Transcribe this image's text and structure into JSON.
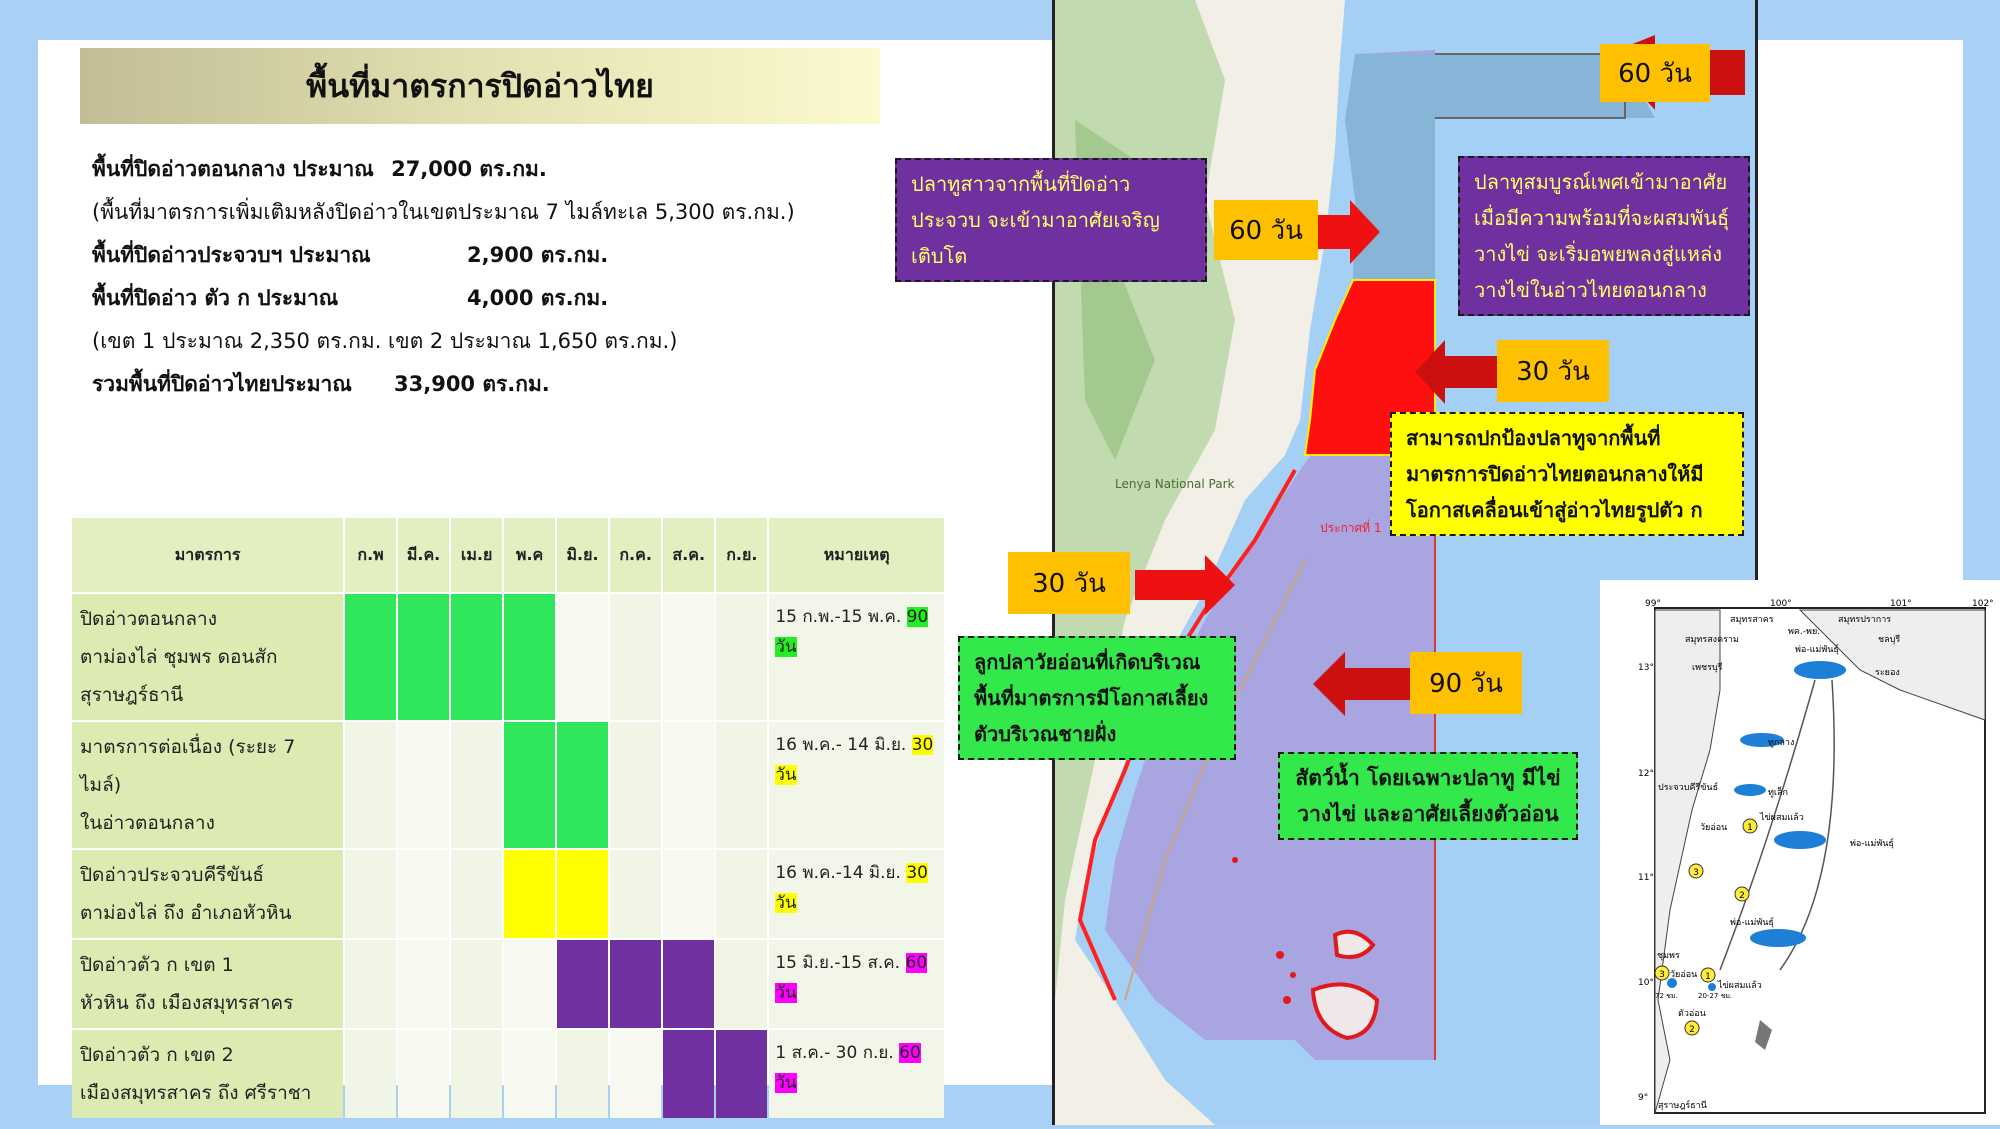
{
  "title": "พื้นที่มาตรการปิดอ่าวไทย",
  "info": {
    "central_label": "พื้นที่ปิดอ่าวตอนกลาง ประมาณ",
    "central_value": "27,000 ตร.กม.",
    "central_note": "(พื้นที่มาตรการเพิ่มเติมหลังปิดอ่าวในเขตประมาณ 7 ไมล์ทะเล 5,300 ตร.กม.)",
    "prachuap_label": "พื้นที่ปิดอ่าวประจวบฯ ประมาณ",
    "prachuap_value": "2,900 ตร.กม.",
    "kor_label": "พื้นที่ปิดอ่าว ตัว ก ประมาณ",
    "kor_value": "4,000 ตร.กม.",
    "kor_note": "(เขต 1 ประมาณ 2,350 ตร.กม. เขต 2 ประมาณ 1,650 ตร.กม.)",
    "total_label": "รวมพื้นที่ปิดอ่าวไทยประมาณ",
    "total_value": "33,900 ตร.กม."
  },
  "table": {
    "headers": [
      "มาตรการ",
      "ก.พ",
      "มี.ค.",
      "เม.ย",
      "พ.ค",
      "มิ.ย.",
      "ก.ค.",
      "ส.ค.",
      "ก.ย.",
      "หมายเหตุ"
    ],
    "rows": [
      {
        "measure_1": "ปิดอ่าวตอนกลาง",
        "measure_2": "ตาม่องไล่ ชุมพร ดอนสัก",
        "measure_3": "สุราษฎร์ธานี",
        "note": "15 ก.พ.-15 พ.ค.",
        "days": "90",
        "days_unit": "วัน",
        "color": "#2ee65a"
      },
      {
        "measure_1": "มาตรการต่อเนื่อง (ระยะ 7 ไมล์)",
        "measure_2": "ในอ่าวตอนกลาง",
        "note": "16 พ.ค.- 14 มิ.ย.",
        "days": "30",
        "days_unit": "วัน",
        "color": "#2ee65a"
      },
      {
        "measure_1": "ปิดอ่าวประจวบคีรีขันธ์",
        "measure_2": "ตาม่องไล่ ถึง อำเภอหัวหิน",
        "note": "16 พ.ค.-14 มิ.ย.",
        "days": "30",
        "days_unit": "วัน",
        "color": "#ffff00"
      },
      {
        "measure_1": "ปิดอ่าวตัว ก เขต 1",
        "measure_2": "หัวหิน ถึง เมืองสมุทรสาคร",
        "note": "15 มิ.ย.-15 ส.ค.",
        "days": "60",
        "days_unit": "วัน",
        "color": "#7030a0"
      },
      {
        "measure_1": "ปิดอ่าวตัว ก เขต 2",
        "measure_2": "เมืองสมุทรสาคร ถึง ศรีราชา",
        "note": "1 ส.ค.- 30 ก.ย.",
        "days": "60 วัน",
        "color": "#7030a0"
      }
    ]
  },
  "map": {
    "days_60a": "60 วัน",
    "days_60b": "60 วัน",
    "days_30a": "30 วัน",
    "days_30b": "30 วัน",
    "days_90": "90 วัน",
    "callout_juvenile": "ปลาทูสาวจากพื้นที่ปิดอ่าวประจวบ จะเข้ามาอาศัยเจริญเติบโต",
    "callout_mature": "ปลาทูสมบูรณ์เพศเข้ามาอาศัยเมื่อมีความพร้อมที่จะผสมพันธุ์วางไข่ จะเริ่มอพยพลงสู่แหล่งวางไข่ในอ่าวไทยตอนกลาง",
    "callout_protect": "สามารถปกป้องปลาทูจากพื้นที่มาตรการปิดอ่าวไทยตอนกลางให้มีโอกาสเคลื่อนเข้าสู่อ่าวไทยรูปตัว ก",
    "callout_larvae": "ลูกปลาวัยอ่อนที่เกิดบริเวณพื้นที่มาตรการมีโอกาสเลี้ยงตัวบริเวณชายฝั่ง",
    "callout_spawn": "สัตว์น้ำ โดยเฉพาะปลาทู มีไข่ วางไข่ และอาศัยเลี้ยงตัวอ่อน",
    "place_lenya": "Lenya National Park",
    "zone_label": "ประกาศที่ 1"
  },
  "inset": {
    "lon_labels": [
      "99°",
      "100°",
      "101°",
      "102°"
    ],
    "lat_labels": [
      "13°",
      "12°",
      "11°",
      "10°",
      "9°"
    ],
    "places": [
      "สมุทรสาคร",
      "สมุทรปราการ",
      "สมุทรสงคราม",
      "ชลบุรี",
      "เพชรบุรี",
      "ระยอง",
      "ประจวบคีรีขันธ์",
      "ชุมพร",
      "สุราษฎร์ธานี"
    ],
    "fish_labels": [
      "พ่อ-แม่พันธุ์",
      "พ่อ-แม่พันธุ์",
      "พ่อ-แม่พันธุ์",
      "ทูกลาง",
      "ทูเล็ก",
      "ไข่ผสมแล้ว",
      "วัยอ่อน",
      "ไข่ผสมแล้ว",
      "วัยอ่อน",
      "ตัวอ่อน"
    ],
    "stage_labels": [
      "พค.-พย.",
      "72 ชม.",
      "20-27 ชม."
    ],
    "markers": [
      "1",
      "2",
      "3",
      "1",
      "2",
      "3"
    ]
  }
}
